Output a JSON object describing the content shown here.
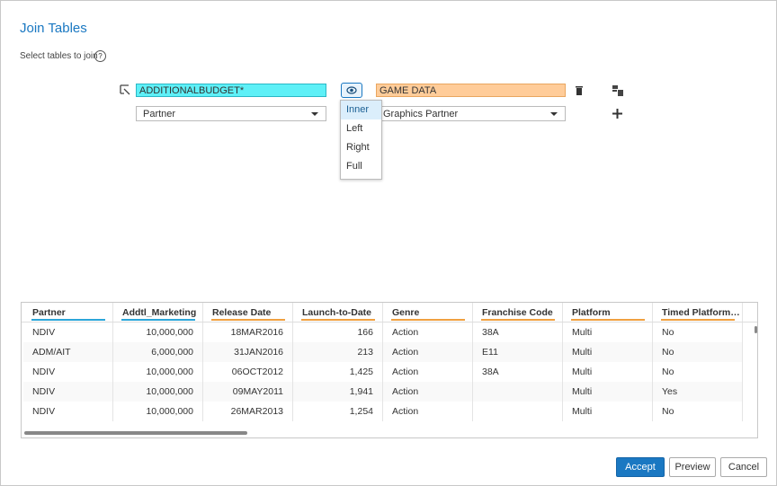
{
  "header": {
    "title": "Join Tables",
    "instruction": "Select tables to join"
  },
  "join": {
    "left_table": "ADDITIONALBUDGET*",
    "right_table": "GAME DATA",
    "left_column": "Partner",
    "right_column": "Graphics Partner",
    "join_types": [
      "Inner",
      "Left",
      "Right",
      "Full"
    ]
  },
  "table": {
    "columns": [
      "Partner",
      "Addtl_Marketing",
      "Release Date",
      "Launch-to-Date",
      "Genre",
      "Franchise Code",
      "Platform",
      "Timed Platform…"
    ],
    "rows": [
      [
        "NDIV",
        "10,000,000",
        "18MAR2016",
        "166",
        "Action",
        "38A",
        "Multi",
        "No"
      ],
      [
        "ADM/AIT",
        "6,000,000",
        "31JAN2016",
        "213",
        "Action",
        "E11",
        "Multi",
        "No"
      ],
      [
        "NDIV",
        "10,000,000",
        "06OCT2012",
        "1,425",
        "Action",
        "38A",
        "Multi",
        "No"
      ],
      [
        "NDIV",
        "10,000,000",
        "09MAY2011",
        "1,941",
        "Action",
        null,
        "Multi",
        "Yes"
      ],
      [
        "NDIV",
        "10,000,000",
        "26MAR2013",
        "1,254",
        "Action",
        null,
        "Multi",
        "No"
      ]
    ]
  },
  "buttons": {
    "accept": "Accept",
    "preview": "Preview",
    "cancel": "Cancel"
  }
}
